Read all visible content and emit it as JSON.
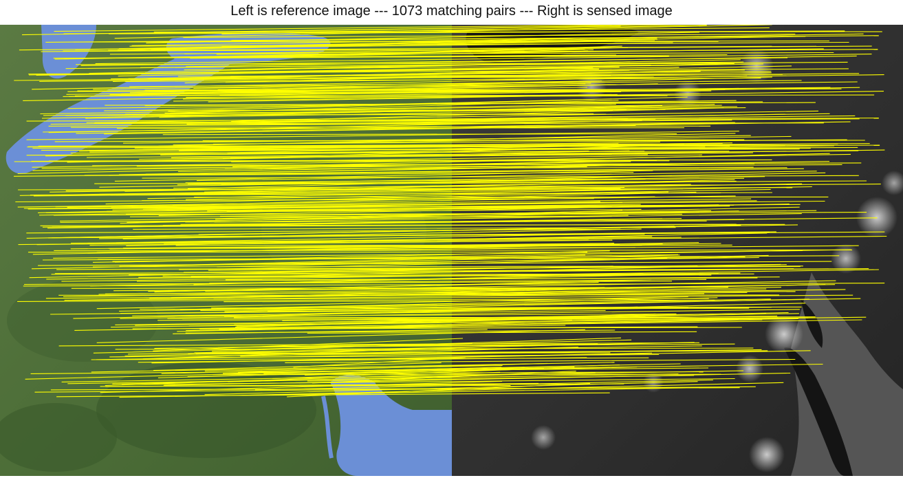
{
  "title": "Left is reference image --- 1073 matching pairs --- Right is sensed image",
  "figure": {
    "left_panel": {
      "description": "satellite color imagery (reference)",
      "land_color": "#4a6b35",
      "water_color": "#6b8fd6"
    },
    "right_panel": {
      "description": "night-lights grayscale imagery (sensed)",
      "base_color": "#2b2b2b",
      "light_color": "#e8e8e8"
    },
    "match_line_color": "#ffff00",
    "matching_pairs": 1073
  }
}
